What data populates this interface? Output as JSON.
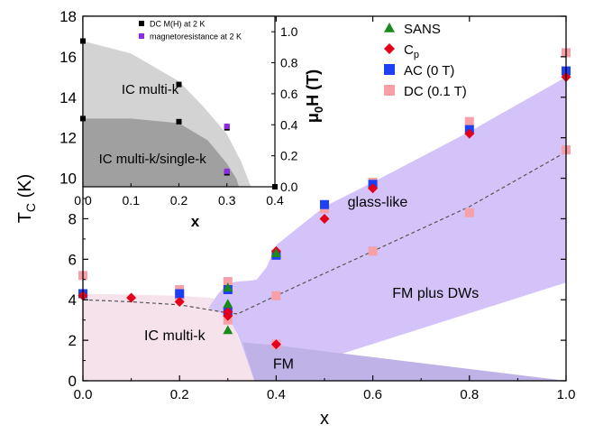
{
  "chart_data": [
    {
      "type": "scatter",
      "xlabel": "x",
      "ylabel_main": "T",
      "ylabel_sub": "C",
      "ylabel_unit": "(K)",
      "xlim": [
        0,
        1
      ],
      "ylim": [
        0,
        18
      ],
      "xticks": [
        "0.0",
        "0.2",
        "0.4",
        "0.6",
        "0.8",
        "1.0"
      ],
      "yticks": [
        "0",
        "2",
        "4",
        "6",
        "8",
        "10",
        "12",
        "14",
        "16",
        "18"
      ],
      "legend_position": "top-right",
      "series": [
        {
          "name": "SANS",
          "marker": "triangle",
          "color": "#1a8a1a",
          "x": [
            0.3,
            0.3,
            0.3,
            0.4
          ],
          "y": [
            2.5,
            3.8,
            4.6,
            6.3
          ]
        },
        {
          "name_main": "C",
          "name_sub": "p",
          "marker": "diamond",
          "color": "#e3001b",
          "x": [
            0.0,
            0.1,
            0.2,
            0.3,
            0.3,
            0.4,
            0.4,
            0.5,
            0.6,
            0.8,
            1.0
          ],
          "y": [
            4.2,
            4.1,
            3.9,
            3.4,
            3.2,
            1.8,
            6.4,
            8.0,
            9.5,
            12.2,
            15.0
          ]
        },
        {
          "name": "AC (0 T)",
          "marker": "square",
          "color": "#1f3ff5",
          "x": [
            0.0,
            0.2,
            0.3,
            0.3,
            0.4,
            0.5,
            0.6,
            0.8,
            1.0
          ],
          "y": [
            4.3,
            4.3,
            4.5,
            3.4,
            6.2,
            8.7,
            9.7,
            12.4,
            15.3
          ]
        },
        {
          "name": "DC (0.1 T)",
          "marker": "square",
          "color": "#f7a0a8",
          "x": [
            0.0,
            0.0,
            0.2,
            0.2,
            0.3,
            0.3,
            0.4,
            0.4,
            0.5,
            0.6,
            0.6,
            0.8,
            0.8,
            1.0,
            1.0
          ],
          "y": [
            5.2,
            4.3,
            4.5,
            4.2,
            4.9,
            3.0,
            4.2,
            1.8,
            8.5,
            6.4,
            9.8,
            8.3,
            12.8,
            11.4,
            16.2
          ]
        }
      ],
      "dashed_line": {
        "x": [
          0.0,
          0.1,
          0.2,
          0.25,
          0.3,
          0.32,
          0.4,
          0.5,
          0.6,
          0.8,
          1.0
        ],
        "y": [
          4.0,
          3.9,
          3.75,
          3.55,
          3.35,
          3.3,
          4.2,
          5.3,
          6.4,
          8.6,
          11.3
        ]
      },
      "regions": [
        {
          "label": "IC multi-k",
          "color": "#f6e2ea"
        },
        {
          "label": "FM",
          "color": "#bfb2e6"
        },
        {
          "label": "FM plus DWs",
          "color": "#d4c3f8"
        },
        {
          "label": "glass-like",
          "color": "#d4c3f8"
        }
      ],
      "inset": {
        "xlabel": "x",
        "ylabel_main": "μ",
        "ylabel_sub": "0",
        "ylabel_unit": "H (T)",
        "xlim": [
          0,
          0.4
        ],
        "ylim": [
          0,
          1.1
        ],
        "xticks": [
          "0.0",
          "0.1",
          "0.2",
          "0.3",
          "0.4"
        ],
        "yticks": [
          "0.0",
          "0.2",
          "0.4",
          "0.6",
          "0.8",
          "1.0"
        ],
        "legend_position": "top",
        "series": [
          {
            "name": "DC M(H) at 2 K",
            "marker": "square",
            "color": "#000000",
            "x": [
              0.0,
              0.0,
              0.2,
              0.2,
              0.3,
              0.3,
              0.4
            ],
            "y": [
              0.94,
              0.44,
              0.66,
              0.42,
              0.38,
              0.09,
              0.0
            ]
          },
          {
            "name": "magnetoresistance at 2 K",
            "marker": "square",
            "color": "#8b2be2",
            "x": [
              0.3,
              0.3
            ],
            "y": [
              0.39,
              0.1
            ]
          }
        ],
        "regions": [
          {
            "label": "IC multi-k",
            "color": "#d3d3d3"
          },
          {
            "label": "IC multi-k/single-k",
            "color": "#a0a0a0"
          }
        ]
      }
    }
  ]
}
